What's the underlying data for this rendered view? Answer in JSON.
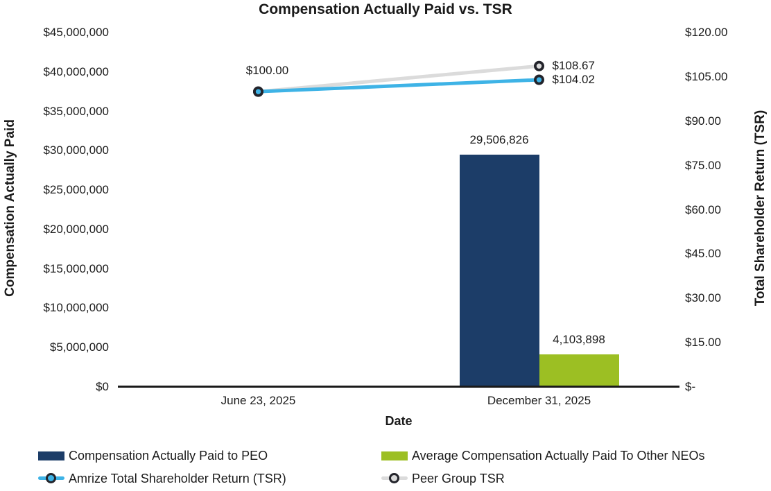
{
  "title": "Compensation Actually Paid vs. TSR",
  "chart_data": {
    "type": "combo-bar-line",
    "categories": [
      "June 23, 2025",
      "December 31, 2025"
    ],
    "x_axis": {
      "title": "Date"
    },
    "left_axis": {
      "title": "Compensation Actually Paid",
      "min": 0,
      "max": 45000000,
      "tick_labels": [
        "$45,000,000",
        "$40,000,000",
        "$35,000,000",
        "$30,000,000",
        "$25,000,000",
        "$20,000,000",
        "$15,000,000",
        "$10,000,000",
        "$5,000,000",
        "$0"
      ]
    },
    "right_axis": {
      "title": "Total Shareholder Return (TSR)",
      "min": 0,
      "max": 120,
      "tick_labels": [
        "$120.00",
        "$105.00",
        "$90.00",
        "$75.00",
        "$60.00",
        "$45.00",
        "$30.00",
        "$15.00",
        "$-"
      ]
    },
    "bar_series": [
      {
        "name": "Compensation Actually Paid to PEO",
        "color": "#1C3D68",
        "axis": "left",
        "values": [
          null,
          29506826
        ],
        "data_labels": [
          "",
          "29,506,826"
        ]
      },
      {
        "name": "Average Compensation Actually Paid To Other NEOs",
        "color": "#9CBF23",
        "axis": "left",
        "values": [
          null,
          4103898
        ],
        "data_labels": [
          "",
          "4,103,898"
        ]
      }
    ],
    "line_series": [
      {
        "name": "Peer Group TSR",
        "color": "#DBDBDB",
        "axis": "right",
        "values": [
          100,
          108.67
        ],
        "data_labels": [
          "",
          "$108.67"
        ]
      },
      {
        "name": "Amrize Total Shareholder Return (TSR)",
        "color": "#3EB3E6",
        "axis": "right",
        "values": [
          100,
          104.02
        ],
        "data_labels": [
          "$100.00",
          "$104.02"
        ]
      }
    ],
    "marker_ring_color": "#23242B",
    "axis_line_color": "#1A1A1A",
    "gridlines": false,
    "legend_position": "bottom"
  },
  "legend": {
    "items": [
      {
        "swatch": "bar",
        "color": "#1C3D68",
        "label": "Compensation Actually Paid to PEO"
      },
      {
        "swatch": "bar",
        "color": "#9CBF23",
        "label": "Average Compensation Actually Paid To Other NEOs"
      },
      {
        "swatch": "line-marker",
        "color": "#3EB3E6",
        "label": "Amrize Total Shareholder Return (TSR)"
      },
      {
        "swatch": "line-marker",
        "color": "#DBDBDB",
        "label": "Peer Group TSR"
      }
    ]
  }
}
